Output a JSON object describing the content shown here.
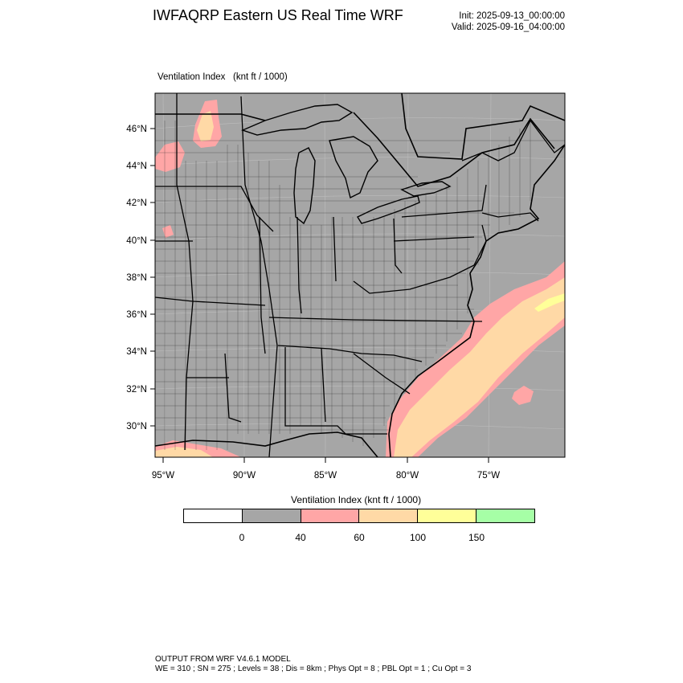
{
  "header": {
    "title": "IWFAQRP Eastern US Real Time WRF",
    "init": "Init: 2025-09-13_00:00:00",
    "valid": "Valid: 2025-09-16_04:00:00"
  },
  "field": {
    "name": "Ventilation Index",
    "units": "(knt ft / 1000)"
  },
  "map": {
    "lat_labels": [
      "46°N",
      "44°N",
      "42°N",
      "40°N",
      "38°N",
      "36°N",
      "34°N",
      "32°N",
      "30°N"
    ],
    "lon_labels": [
      "95°W",
      "90°W",
      "85°W",
      "80°W",
      "75°W"
    ],
    "colors": {
      "land": "#a6a6a6",
      "ocean": "#a6a6a6",
      "vi_40_60": "#ffa6a6",
      "vi_60_100": "#ffd9a6",
      "vi_100_150": "#ffff99"
    }
  },
  "legend": {
    "title": "Ventilation Index  (knt ft / 1000)",
    "colors": [
      "#ffffff",
      "#a6a6a6",
      "#ffa6a6",
      "#ffd9a6",
      "#ffff99",
      "#a6ffa6"
    ],
    "tick_labels": [
      "0",
      "40",
      "60",
      "100",
      "150"
    ]
  },
  "footer": {
    "line1": "OUTPUT FROM WRF V4.6.1 MODEL",
    "line2": "WE = 310 ; SN = 275 ; Levels = 38 ; Dis = 8km ; Phys Opt = 8 ; PBL Opt = 1 ; Cu Opt = 3"
  }
}
